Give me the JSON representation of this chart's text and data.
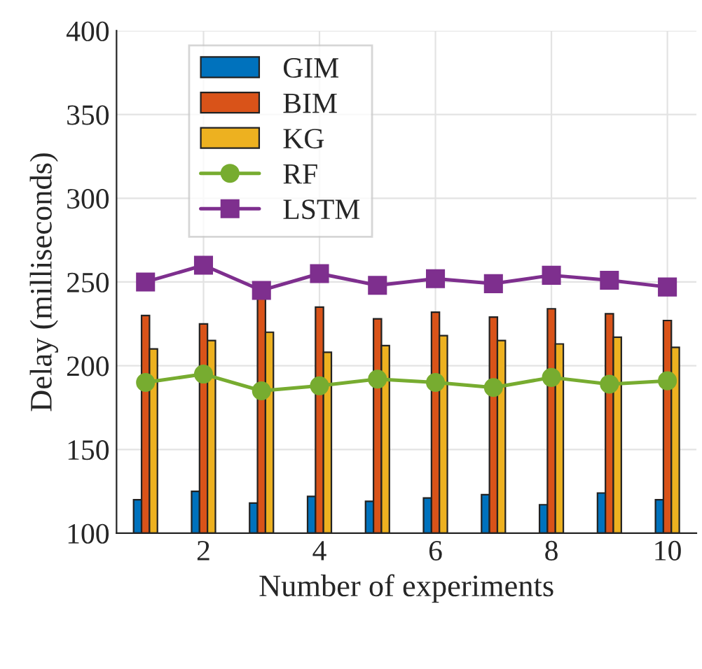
{
  "chart_data": {
    "type": "bar",
    "xlabel": "Number of experiments",
    "ylabel": "Delay (milliseconds)",
    "x": [
      1,
      2,
      3,
      4,
      5,
      6,
      7,
      8,
      9,
      10
    ],
    "series": [
      {
        "name": "GIM",
        "color": "#0072bd",
        "values": [
          120,
          125,
          118,
          122,
          119,
          121,
          123,
          117,
          124,
          120
        ]
      },
      {
        "name": "BIM",
        "color": "#d95319",
        "values": [
          230,
          225,
          240,
          235,
          228,
          232,
          229,
          234,
          231,
          227
        ]
      },
      {
        "name": "KG",
        "color": "#edb120",
        "values": [
          210,
          215,
          220,
          208,
          212,
          218,
          215,
          213,
          217,
          211
        ]
      },
      {
        "name": "RF",
        "type": "line",
        "color": "#77ac30",
        "marker": "circle",
        "values": [
          190,
          195,
          185,
          188,
          192,
          190,
          187,
          193,
          189,
          191
        ]
      },
      {
        "name": "LSTM",
        "type": "line",
        "color": "#7e2f8e",
        "marker": "square",
        "values": [
          250,
          260,
          245,
          255,
          248,
          252,
          249,
          254,
          251,
          247
        ]
      }
    ],
    "xlim": [
      0.5,
      10.5
    ],
    "xticks": [
      2,
      4,
      6,
      8,
      10
    ],
    "ylim": [
      100,
      400
    ],
    "yticks": [
      100,
      150,
      200,
      250,
      300,
      350,
      400
    ],
    "grid": true,
    "legend": "top left"
  }
}
